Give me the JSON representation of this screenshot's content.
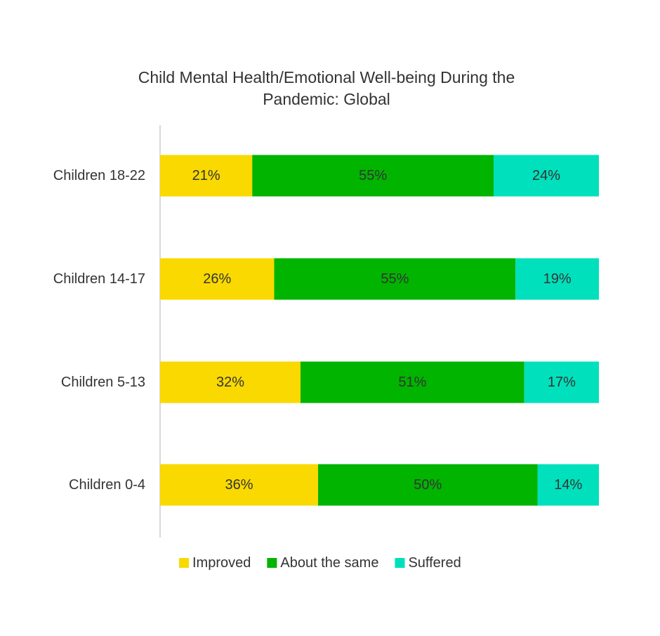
{
  "chart_data": {
    "type": "bar",
    "orientation": "horizontal",
    "stacked": true,
    "title_lines": [
      "Child Mental Health/Emotional Well-being During the",
      "Pandemic: Global"
    ],
    "categories": [
      "Children 18-22",
      "Children 14-17",
      "Children 5-13",
      "Children 0-4"
    ],
    "series": [
      {
        "name": "Improved",
        "color": "#F9D900",
        "values": [
          21,
          26,
          32,
          36
        ]
      },
      {
        "name": "About the same",
        "color": "#00B400",
        "values": [
          55,
          55,
          51,
          50
        ]
      },
      {
        "name": "Suffered",
        "color": "#00E0BC",
        "values": [
          24,
          19,
          17,
          14
        ]
      }
    ],
    "value_suffix": "%",
    "xlim": [
      0,
      100
    ],
    "grid": false,
    "legend_position": "bottom"
  }
}
